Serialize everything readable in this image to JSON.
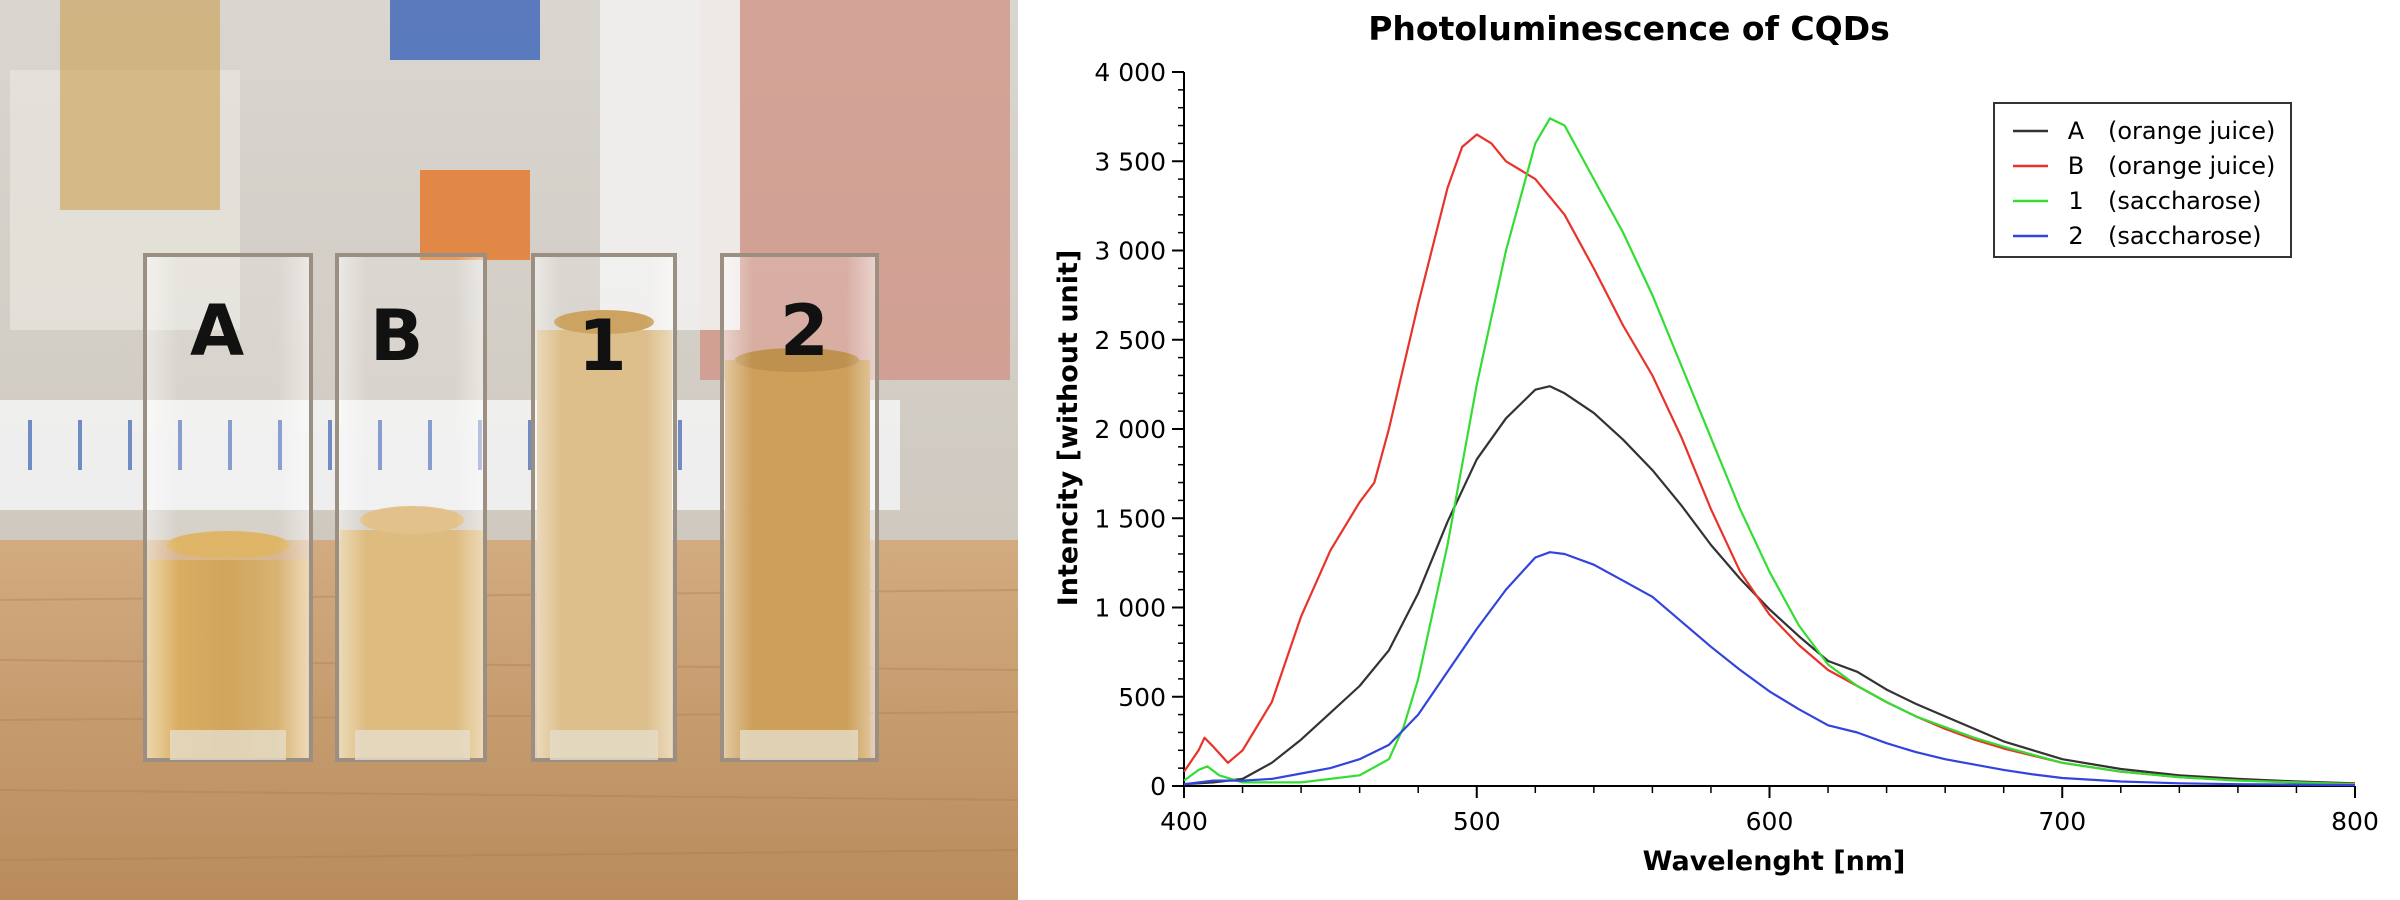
{
  "photo": {
    "cuvette_labels": [
      "A",
      "B",
      "1",
      "2"
    ],
    "liquid_color": "#c8953f",
    "table_color": "#c49a6e"
  },
  "chart_data": {
    "type": "line",
    "title": "Photoluminescence of CQDs",
    "xlabel": "Wavelenght [nm]",
    "ylabel": "Intencity [without unit]",
    "xlim": [
      400,
      800
    ],
    "ylim": [
      0,
      4000
    ],
    "xticks": [
      400,
      500,
      600,
      700,
      800
    ],
    "xtick_labels": [
      "400",
      "500",
      "600",
      "700",
      "800"
    ],
    "yticks": [
      0,
      500,
      1000,
      1500,
      2000,
      2500,
      3000,
      3500,
      4000
    ],
    "ytick_labels": [
      "0",
      "500",
      "1 000",
      "1 500",
      "2 000",
      "2 500",
      "3 000",
      "3 500",
      "4 000"
    ],
    "grid": false,
    "legend_position": "top-right",
    "series": [
      {
        "label_id": "A",
        "label_desc": "(orange juice)",
        "color": "#333333",
        "points": [
          [
            400,
            10
          ],
          [
            410,
            20
          ],
          [
            420,
            40
          ],
          [
            430,
            130
          ],
          [
            440,
            260
          ],
          [
            450,
            410
          ],
          [
            460,
            560
          ],
          [
            470,
            760
          ],
          [
            480,
            1080
          ],
          [
            490,
            1480
          ],
          [
            500,
            1830
          ],
          [
            510,
            2060
          ],
          [
            520,
            2220
          ],
          [
            525,
            2240
          ],
          [
            530,
            2200
          ],
          [
            540,
            2090
          ],
          [
            550,
            1940
          ],
          [
            560,
            1770
          ],
          [
            570,
            1570
          ],
          [
            580,
            1350
          ],
          [
            590,
            1160
          ],
          [
            600,
            990
          ],
          [
            610,
            840
          ],
          [
            620,
            700
          ],
          [
            630,
            640
          ],
          [
            640,
            540
          ],
          [
            650,
            460
          ],
          [
            660,
            390
          ],
          [
            670,
            320
          ],
          [
            680,
            250
          ],
          [
            690,
            200
          ],
          [
            700,
            150
          ],
          [
            720,
            95
          ],
          [
            740,
            60
          ],
          [
            760,
            40
          ],
          [
            780,
            25
          ],
          [
            800,
            15
          ]
        ]
      },
      {
        "label_id": "B",
        "label_desc": "(orange juice)",
        "color": "#e8322a",
        "points": [
          [
            400,
            80
          ],
          [
            405,
            200
          ],
          [
            407,
            270
          ],
          [
            410,
            220
          ],
          [
            415,
            130
          ],
          [
            420,
            200
          ],
          [
            430,
            470
          ],
          [
            440,
            950
          ],
          [
            450,
            1320
          ],
          [
            460,
            1590
          ],
          [
            465,
            1700
          ],
          [
            470,
            2000
          ],
          [
            480,
            2700
          ],
          [
            490,
            3350
          ],
          [
            495,
            3580
          ],
          [
            500,
            3650
          ],
          [
            505,
            3600
          ],
          [
            510,
            3500
          ],
          [
            520,
            3400
          ],
          [
            530,
            3200
          ],
          [
            540,
            2900
          ],
          [
            550,
            2580
          ],
          [
            560,
            2300
          ],
          [
            570,
            1950
          ],
          [
            580,
            1550
          ],
          [
            590,
            1200
          ],
          [
            600,
            960
          ],
          [
            610,
            790
          ],
          [
            620,
            650
          ],
          [
            630,
            560
          ],
          [
            640,
            470
          ],
          [
            650,
            390
          ],
          [
            660,
            320
          ],
          [
            670,
            260
          ],
          [
            680,
            210
          ],
          [
            690,
            170
          ],
          [
            700,
            130
          ],
          [
            720,
            80
          ],
          [
            740,
            50
          ],
          [
            760,
            32
          ],
          [
            780,
            20
          ],
          [
            800,
            12
          ]
        ]
      },
      {
        "label_id": "1",
        "label_desc": "(saccharose)",
        "color": "#33dd33",
        "points": [
          [
            400,
            30
          ],
          [
            405,
            90
          ],
          [
            408,
            110
          ],
          [
            412,
            60
          ],
          [
            420,
            20
          ],
          [
            440,
            20
          ],
          [
            460,
            60
          ],
          [
            470,
            150
          ],
          [
            475,
            330
          ],
          [
            480,
            600
          ],
          [
            490,
            1350
          ],
          [
            500,
            2250
          ],
          [
            510,
            3000
          ],
          [
            520,
            3600
          ],
          [
            525,
            3740
          ],
          [
            530,
            3700
          ],
          [
            540,
            3400
          ],
          [
            550,
            3100
          ],
          [
            560,
            2750
          ],
          [
            570,
            2350
          ],
          [
            580,
            1950
          ],
          [
            590,
            1550
          ],
          [
            600,
            1200
          ],
          [
            610,
            900
          ],
          [
            620,
            680
          ],
          [
            630,
            560
          ],
          [
            640,
            470
          ],
          [
            650,
            390
          ],
          [
            660,
            330
          ],
          [
            670,
            270
          ],
          [
            680,
            220
          ],
          [
            690,
            175
          ],
          [
            700,
            130
          ],
          [
            720,
            80
          ],
          [
            740,
            50
          ],
          [
            760,
            30
          ],
          [
            780,
            20
          ],
          [
            800,
            10
          ]
        ]
      },
      {
        "label_id": "2",
        "label_desc": "(saccharose)",
        "color": "#3344dd",
        "points": [
          [
            400,
            10
          ],
          [
            410,
            30
          ],
          [
            420,
            30
          ],
          [
            430,
            40
          ],
          [
            440,
            70
          ],
          [
            450,
            100
          ],
          [
            460,
            150
          ],
          [
            470,
            230
          ],
          [
            480,
            400
          ],
          [
            490,
            640
          ],
          [
            500,
            880
          ],
          [
            510,
            1100
          ],
          [
            520,
            1280
          ],
          [
            525,
            1310
          ],
          [
            530,
            1300
          ],
          [
            540,
            1240
          ],
          [
            550,
            1150
          ],
          [
            560,
            1060
          ],
          [
            570,
            920
          ],
          [
            580,
            780
          ],
          [
            590,
            650
          ],
          [
            600,
            530
          ],
          [
            610,
            430
          ],
          [
            620,
            340
          ],
          [
            630,
            300
          ],
          [
            640,
            240
          ],
          [
            650,
            190
          ],
          [
            660,
            150
          ],
          [
            670,
            120
          ],
          [
            680,
            90
          ],
          [
            690,
            65
          ],
          [
            700,
            45
          ],
          [
            720,
            25
          ],
          [
            740,
            15
          ],
          [
            760,
            10
          ],
          [
            780,
            8
          ],
          [
            800,
            5
          ]
        ]
      }
    ]
  }
}
